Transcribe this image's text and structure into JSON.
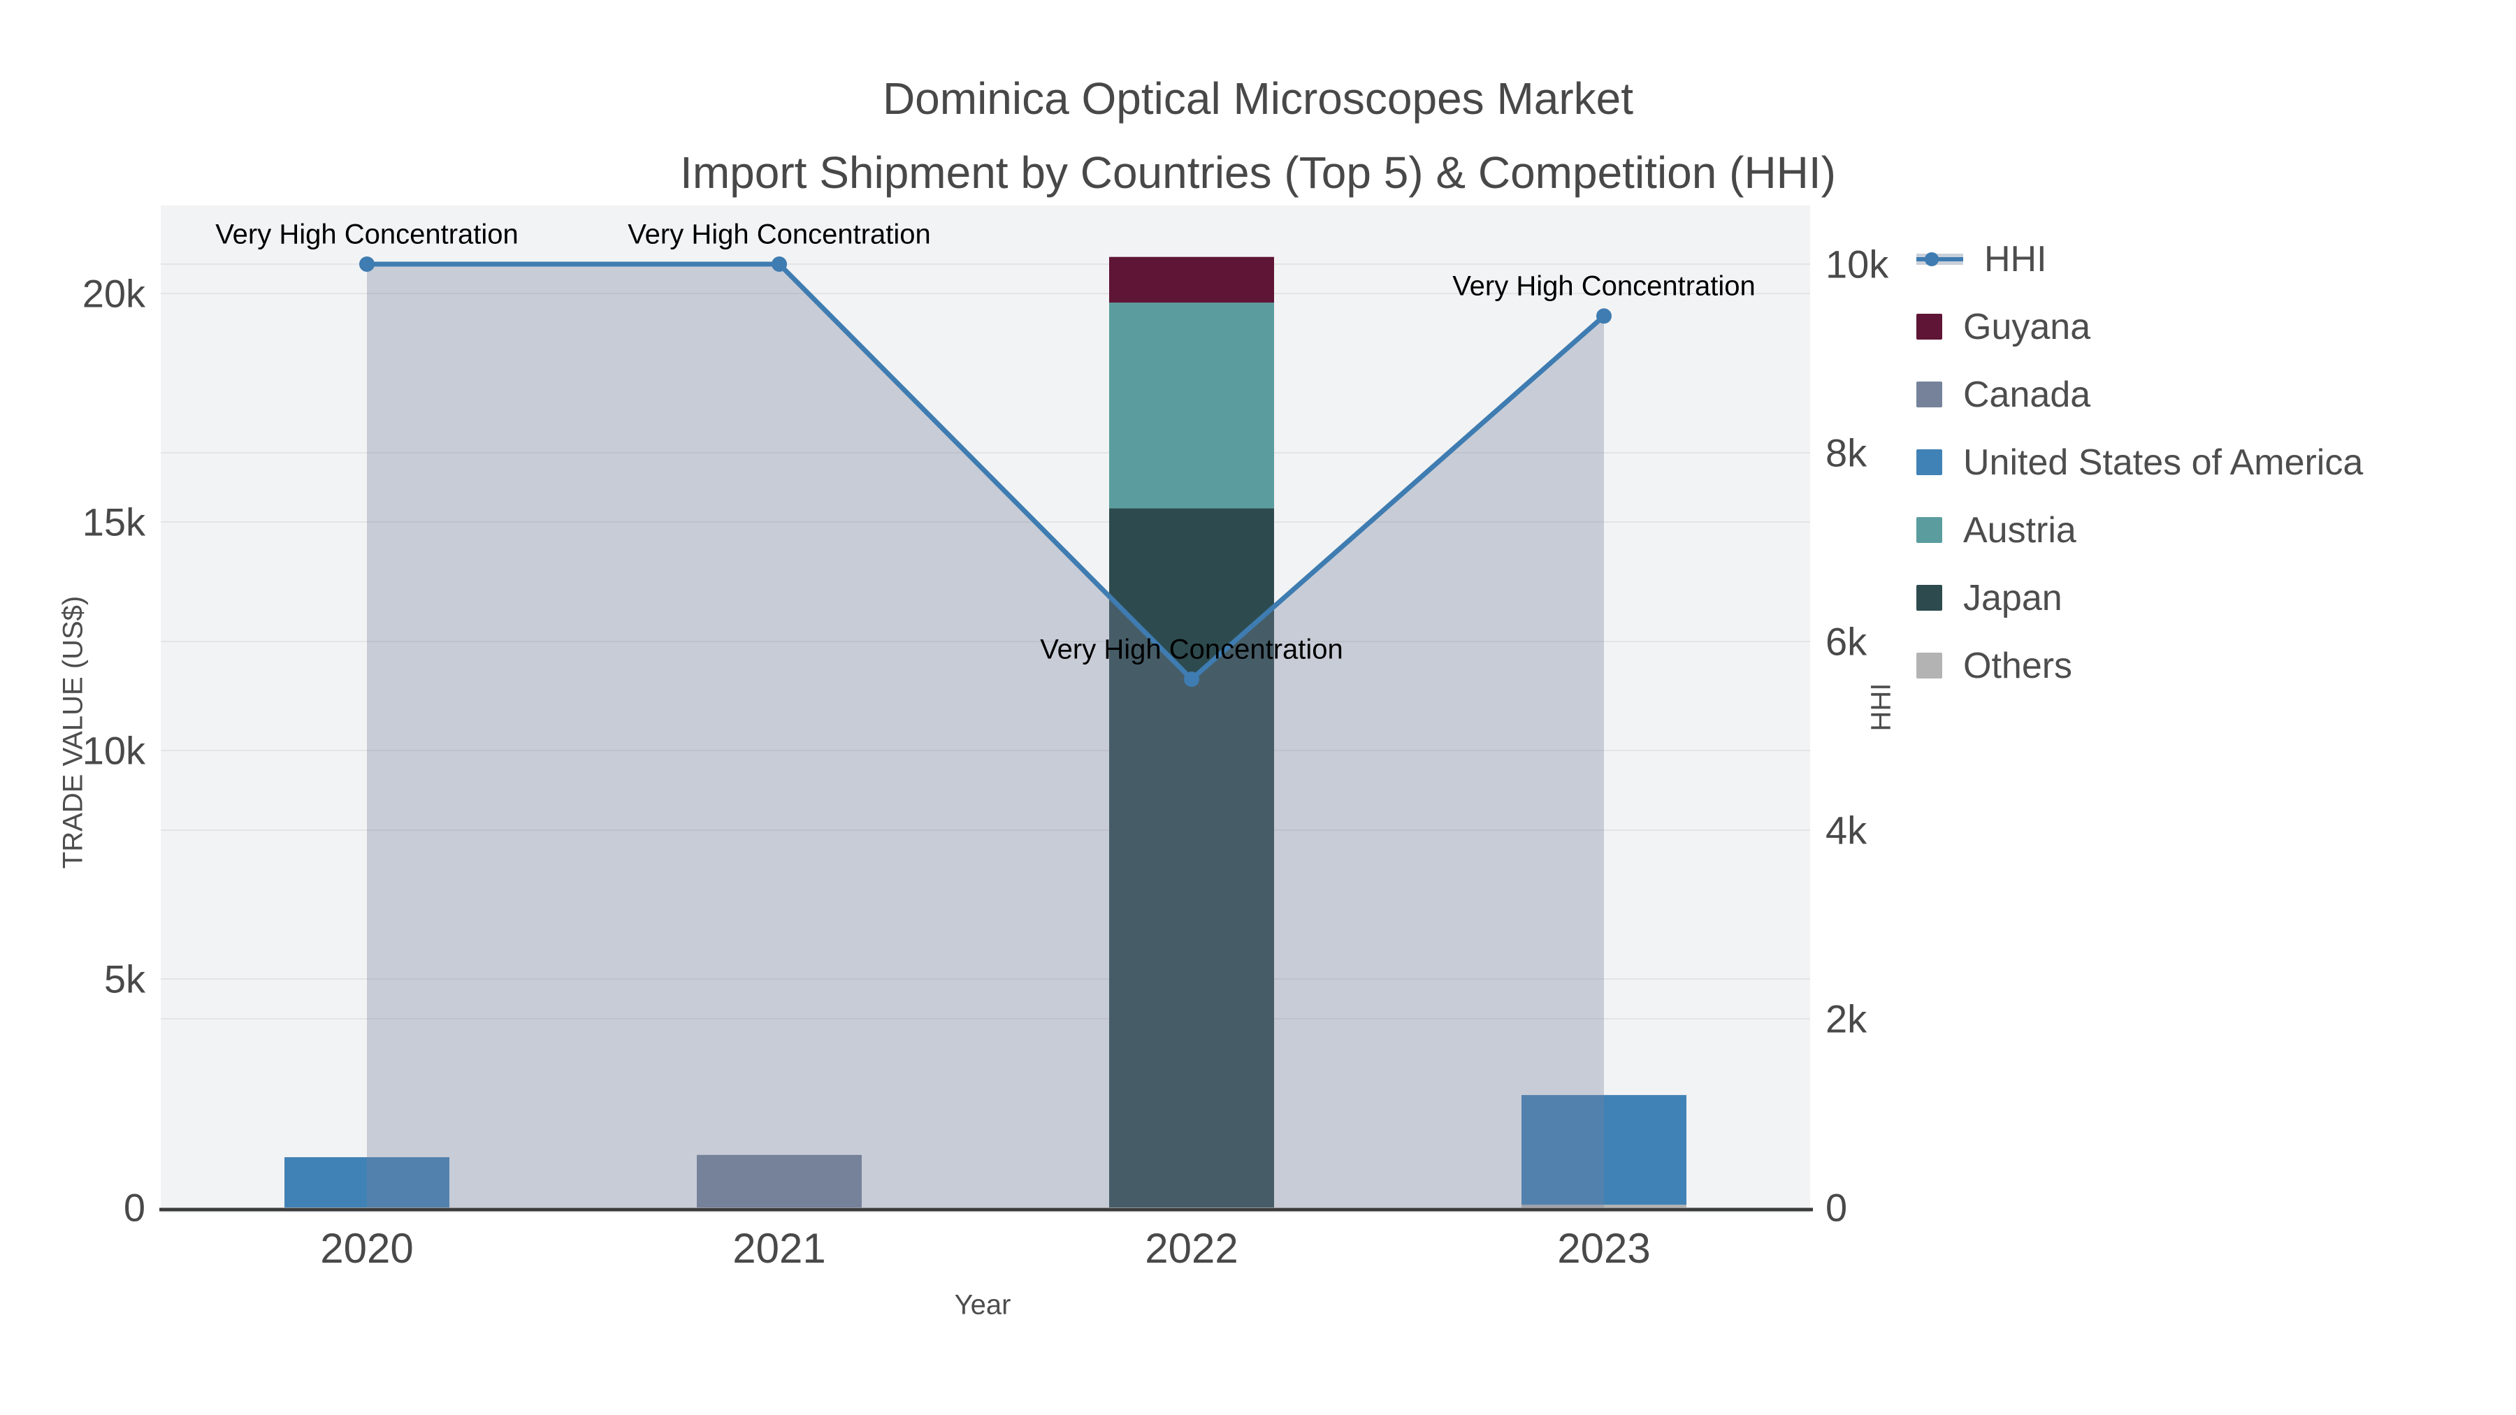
{
  "title": {
    "line1": "Dominica Optical Microscopes Market",
    "line2": "Import Shipment by Countries (Top 5) & Competition (HHI)"
  },
  "chart_data": {
    "type": "bar+line",
    "title": "Dominica Optical Microscopes Market Import Shipment by Countries (Top 5) & Competition (HHI)",
    "categories": [
      "2020",
      "2021",
      "2022",
      "2023"
    ],
    "bar_stack_order_note": "bottom to top",
    "series": [
      {
        "name": "Others",
        "color": "#b3b3b3",
        "values": [
          0,
          0,
          0,
          60
        ]
      },
      {
        "name": "Japan",
        "color": "#2d4b4e",
        "values": [
          0,
          0,
          15300,
          0
        ]
      },
      {
        "name": "Austria",
        "color": "#5b9d9e",
        "values": [
          0,
          0,
          4500,
          0
        ]
      },
      {
        "name": "United States of America",
        "color": "#4182b6",
        "values": [
          1100,
          0,
          0,
          2400
        ]
      },
      {
        "name": "Canada",
        "color": "#75829a",
        "values": [
          0,
          1150,
          0,
          0
        ]
      },
      {
        "name": "Guyana",
        "color": "#5f1536",
        "values": [
          0,
          0,
          1000,
          0
        ]
      }
    ],
    "line_series": {
      "name": "HHI",
      "color": "#3e7cb1",
      "fill_color": "rgba(120,130,155,0.34)",
      "values": [
        10000,
        10000,
        5600,
        9450
      ]
    },
    "annotations": [
      {
        "x": "2020",
        "text": "Very High Concentration"
      },
      {
        "x": "2021",
        "text": "Very High Concentration"
      },
      {
        "x": "2022",
        "text": "Very High Concentration"
      },
      {
        "x": "2023",
        "text": "Very High Concentration"
      }
    ],
    "left_axis": {
      "title": "TRADE VALUE (US$)",
      "tick_values": [
        0,
        5000,
        10000,
        15000,
        20000
      ],
      "tick_labels": [
        "0",
        "5k",
        "10k",
        "15k",
        "20k"
      ],
      "range": [
        0,
        21950
      ]
    },
    "right_axis": {
      "title": "HHI",
      "tick_values": [
        0,
        2000,
        4000,
        6000,
        8000,
        10000
      ],
      "tick_labels": [
        "0",
        "2k",
        "4k",
        "6k",
        "8k",
        "10k"
      ],
      "range": [
        0,
        10650
      ]
    },
    "x_axis": {
      "title": "Year"
    },
    "grid": true,
    "legend_position": "top-right",
    "plot_bg": "#f2f3f4",
    "gridline_color": "#e3e4e6",
    "axis_line_color": "#3b3b3b"
  },
  "legend": {
    "items": [
      {
        "label": "HHI",
        "type": "line",
        "color": "#3e7cb1",
        "band": "#c9cfd9"
      },
      {
        "label": "Guyana",
        "type": "swatch",
        "color": "#5f1536"
      },
      {
        "label": "Canada",
        "type": "swatch",
        "color": "#75829a"
      },
      {
        "label": "United States of America",
        "type": "swatch",
        "color": "#4182b6"
      },
      {
        "label": "Austria",
        "type": "swatch",
        "color": "#5b9d9e"
      },
      {
        "label": "Japan",
        "type": "swatch",
        "color": "#2d4b4e"
      },
      {
        "label": "Others",
        "type": "swatch",
        "color": "#b3b3b3"
      }
    ]
  }
}
